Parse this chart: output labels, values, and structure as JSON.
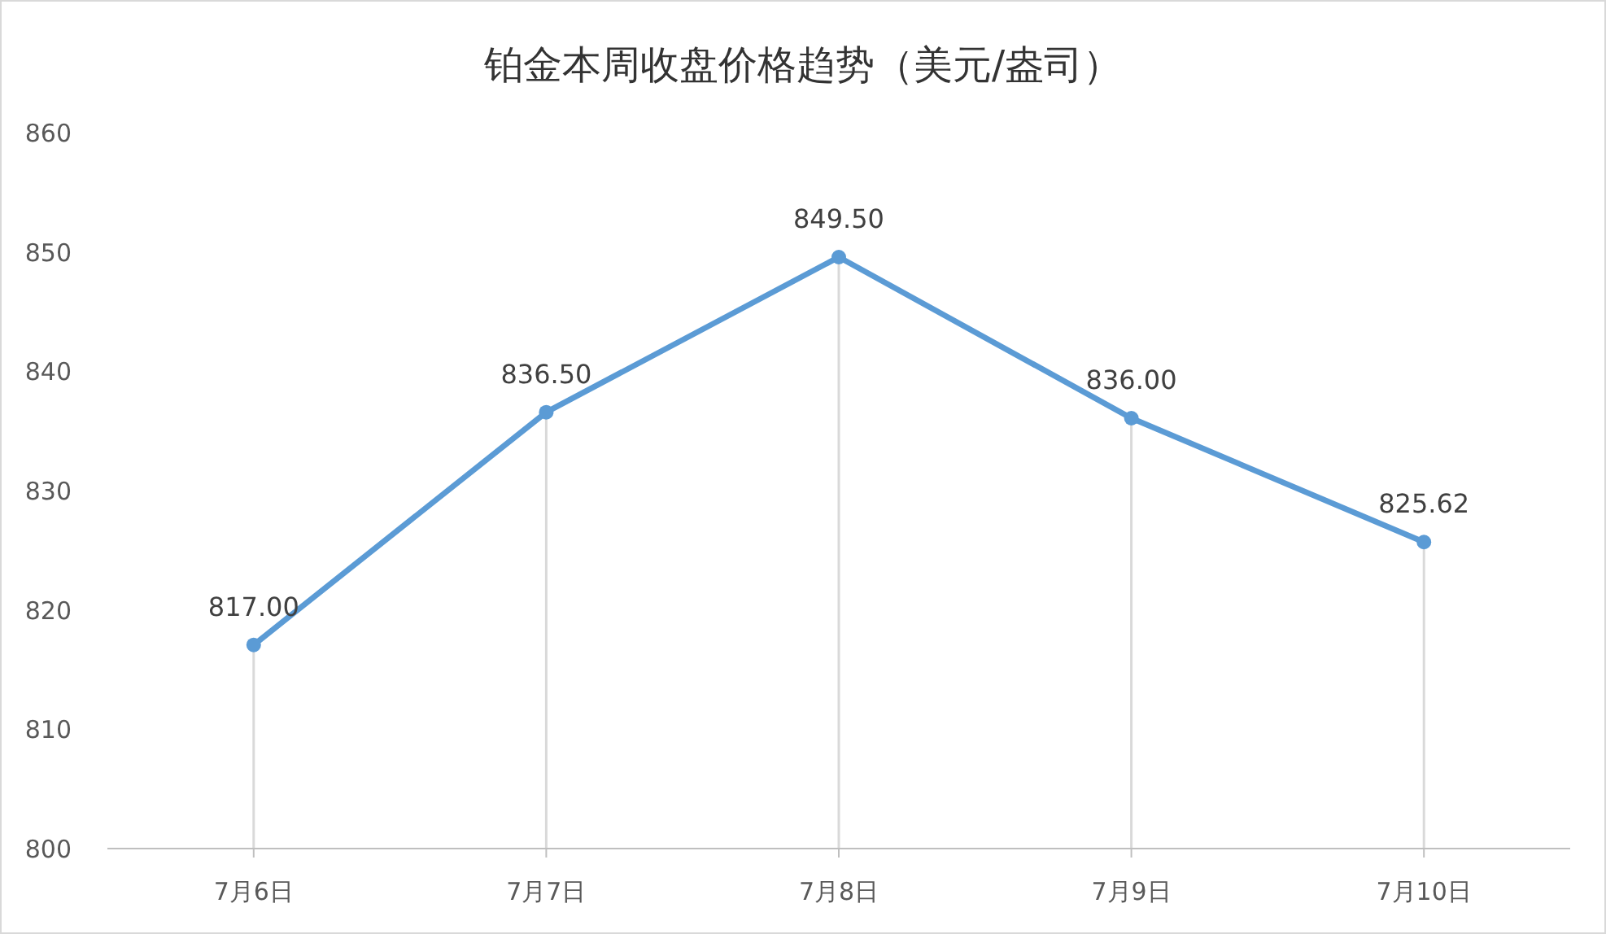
{
  "chart_data": {
    "type": "line",
    "title": "铂金本周收盘价格趋势（美元/盎司）",
    "categories": [
      "7月6日",
      "7月7日",
      "7月8日",
      "7月9日",
      "7月10日"
    ],
    "series": [
      {
        "color": "#5b9bd5",
        "values": [
          817.0,
          836.5,
          849.5,
          836.0,
          825.62
        ]
      }
    ],
    "value_labels": [
      "817.00",
      "836.50",
      "849.50",
      "836.00",
      "825.62"
    ],
    "ylim": [
      800,
      860
    ],
    "yticks": [
      800,
      810,
      820,
      830,
      840,
      850,
      860
    ],
    "grid": "x",
    "marker": "circle",
    "line_style": "solid"
  }
}
